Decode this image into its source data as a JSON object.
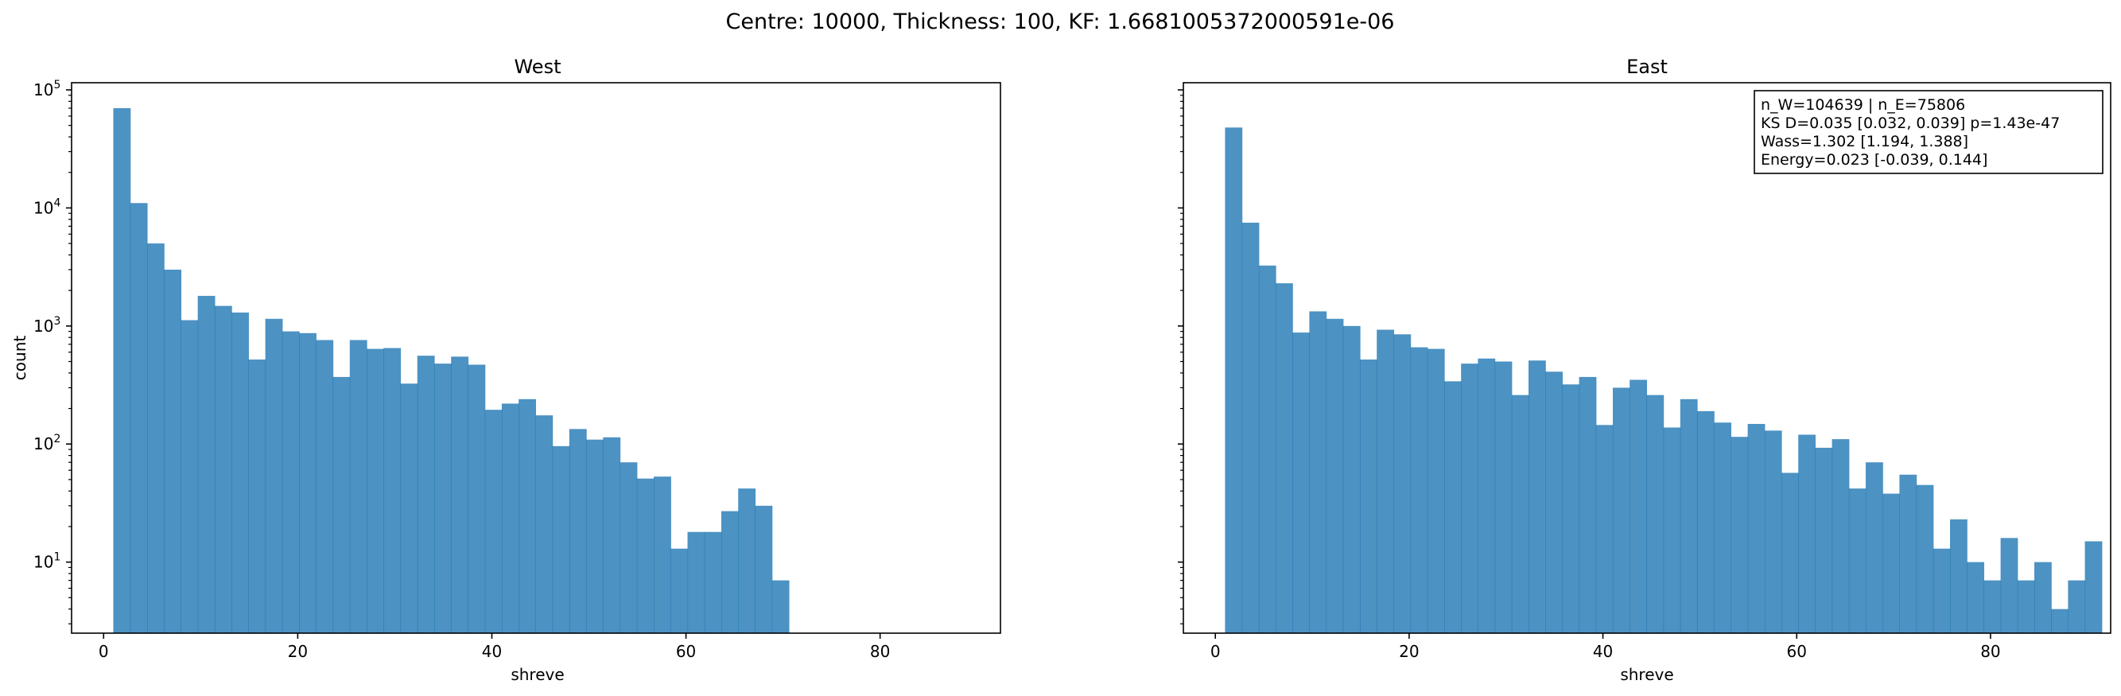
{
  "suptitle": "Centre: 10000, Thickness: 100, KF: 1.6681005372000591e-06",
  "chart_data": [
    {
      "type": "bar",
      "title": "West",
      "xlabel": "shreve",
      "ylabel": "count",
      "yscale": "log",
      "xlim": [
        -3.3,
        92.4
      ],
      "ylim": [
        2.5,
        115000
      ],
      "xticks": [
        0,
        20,
        40,
        60,
        80
      ],
      "xtick_labels": [
        "0",
        "20",
        "40",
        "60",
        "80"
      ],
      "yticks": [
        10,
        100,
        1000,
        10000,
        100000
      ],
      "ytick_labels": [
        "10",
        "10",
        "10",
        "10",
        "10"
      ],
      "ytick_exponents": [
        "1",
        "2",
        "3",
        "4",
        "5"
      ],
      "bin_width": 1.74,
      "bin_start": 1,
      "values": [
        70000,
        11000,
        5000,
        3000,
        1120,
        1800,
        1480,
        1300,
        520,
        1150,
        900,
        870,
        760,
        370,
        760,
        640,
        650,
        325,
        560,
        480,
        550,
        470,
        195,
        220,
        240,
        175,
        96,
        134,
        109,
        114,
        70,
        51,
        53,
        13,
        18,
        18,
        27,
        42,
        30,
        7
      ],
      "color": "#1f77b4",
      "annotation": []
    },
    {
      "type": "bar",
      "title": "East",
      "xlabel": "shreve",
      "ylabel": "",
      "yscale": "log",
      "xlim": [
        -3.3,
        92.4
      ],
      "ylim": [
        2.5,
        115000
      ],
      "xticks": [
        0,
        20,
        40,
        60,
        80
      ],
      "xtick_labels": [
        "0",
        "20",
        "40",
        "60",
        "80"
      ],
      "yticks": [
        10,
        100,
        1000,
        10000,
        100000
      ],
      "ytick_labels": [],
      "ytick_exponents": [],
      "bin_width": 1.74,
      "bin_start": 1,
      "values": [
        48000,
        7500,
        3250,
        2300,
        880,
        1330,
        1150,
        1000,
        520,
        930,
        850,
        660,
        640,
        340,
        480,
        530,
        500,
        260,
        510,
        410,
        320,
        370,
        145,
        300,
        350,
        260,
        138,
        240,
        190,
        152,
        115,
        148,
        130,
        57,
        120,
        93,
        110,
        42,
        70,
        38,
        55,
        45,
        13,
        23,
        10,
        7,
        16,
        7,
        10,
        4,
        7,
        15
      ],
      "color": "#1f77b4",
      "annotation": [
        "n_W=104639 | n_E=75806",
        "KS D=0.035 [0.032, 0.039]  p=1.43e-47",
        "Wass=1.302 [1.194, 1.388]",
        "Energy=0.023 [-0.039, 0.144]"
      ]
    }
  ]
}
